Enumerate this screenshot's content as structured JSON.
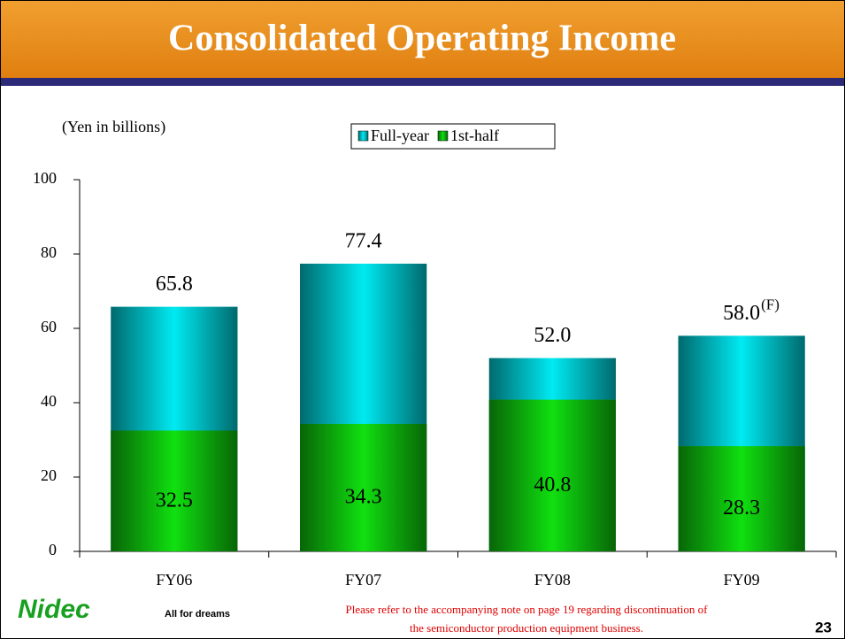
{
  "chart_data": {
    "type": "bar",
    "overlap": true,
    "title": "Consolidated Operating Income",
    "ylabel": "(Yen in billions)",
    "categories": [
      "FY06",
      "FY07",
      "FY08",
      "FY09"
    ],
    "series": [
      {
        "name": "Full-year",
        "color": "#00eaf2",
        "values": [
          65.8,
          77.4,
          52.0,
          58.0
        ],
        "value_labels": [
          "65.8",
          "77.4",
          "52.0",
          "58.0"
        ]
      },
      {
        "name": "1st-half",
        "color": "#10e010",
        "values": [
          32.5,
          34.3,
          40.8,
          28.3
        ]
      }
    ],
    "annotations": [
      "(F)"
    ],
    "ylim": [
      0,
      100
    ],
    "yticks": [
      0,
      20,
      40,
      60,
      80,
      100
    ]
  },
  "footer": {
    "note": [
      "Please refer to the accompanying note on page 19 regarding discontinuation of",
      "the semiconductor production equipment business."
    ],
    "page_number": "23",
    "logo": "Nidec",
    "slogan": "All for dreams"
  }
}
